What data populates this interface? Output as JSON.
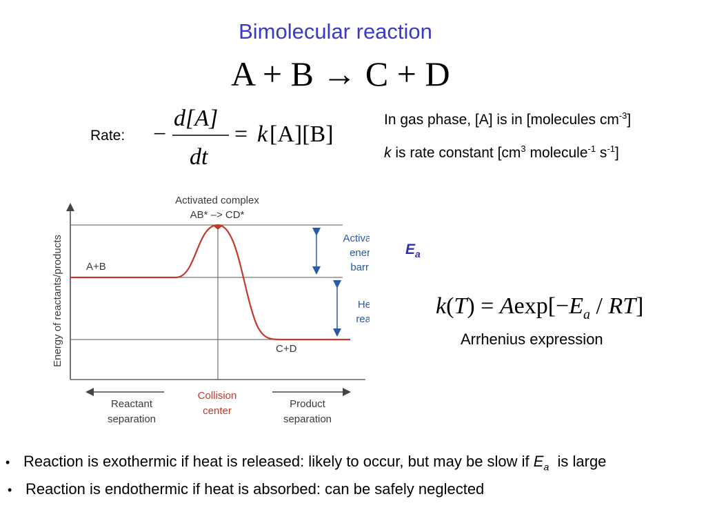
{
  "slide": {
    "title": "Bimolecular reaction",
    "reaction": {
      "lhs1": "A",
      "lhs2": "B",
      "rhs1": "C",
      "rhs2": "D"
    },
    "rate_label": "Rate:",
    "rate_equation": {
      "numerator": "d[A]",
      "denominator": "dt",
      "rhs_k": "k",
      "rhs_conc": "[A][B]"
    },
    "gas_phase_note": {
      "text": "In gas phase, [A] is in [molecules cm",
      "exp": "-3",
      "close": "]"
    },
    "rate_constant_note": {
      "k": "k",
      "text1": " is rate constant [cm",
      "exp1": "3",
      "text2": " molecule",
      "exp2": "-1",
      "text3": " s",
      "exp3": "-1",
      "close": "]"
    },
    "ea_label": {
      "main": "E",
      "sub": "a"
    },
    "arrhenius": {
      "k": "k",
      "T": "T",
      "A": "A",
      "exp": "exp[",
      "minus": "−",
      "E": "E",
      "a": "a",
      "slash": " / ",
      "RT": "RT",
      "close": "]",
      "caption": "Arrhenius expression"
    },
    "bullets": [
      {
        "text": "Reaction is exothermic if heat is released: likely to occur, but may be slow if ",
        "ea": "E",
        "ea_sub": "a",
        "tail": "  is large"
      },
      {
        "text": "Reaction is endothermic if heat is absorbed: can be safely neglected"
      }
    ]
  },
  "diagram": {
    "y_axis_label": "Energy of reactants/products",
    "activated_complex": [
      "Activated complex",
      "AB* –> CD*"
    ],
    "reactants": "A+B",
    "products": "C+D",
    "activation_barrier": [
      "Activation",
      "energy",
      "barrier"
    ],
    "heat_of_reaction": [
      "Heat of",
      "reaction"
    ],
    "reactant_separation": [
      "Reactant",
      "separation"
    ],
    "collision_center": [
      "Collision",
      "center"
    ],
    "product_separation": [
      "Product",
      "separation"
    ],
    "colors": {
      "curve": "#c0392b",
      "arrow": "#2d58a6",
      "collision": "#c0392b",
      "title": "#3b39c6"
    }
  }
}
